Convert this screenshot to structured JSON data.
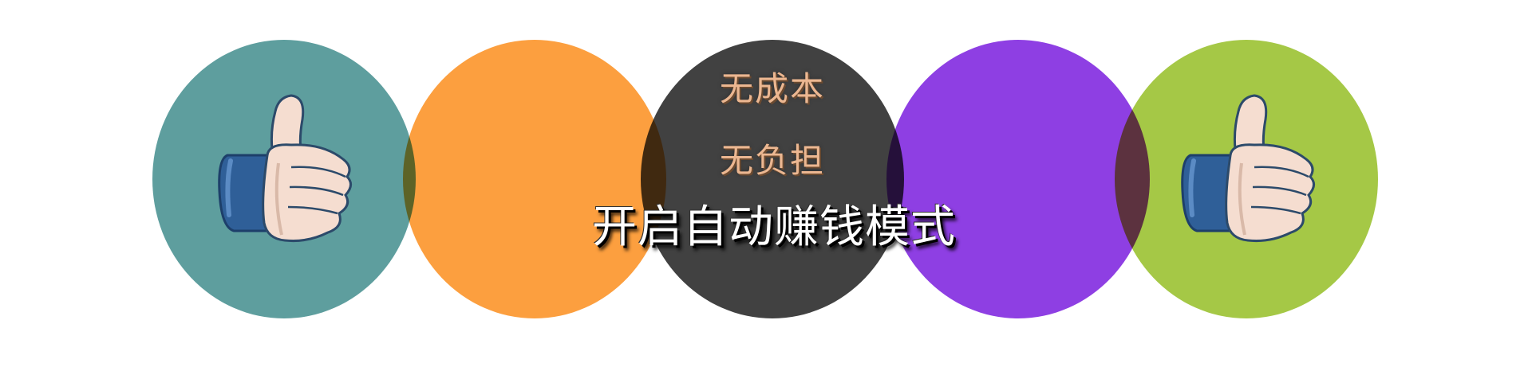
{
  "colors": {
    "background": "#ffffff",
    "circle_1": "#5e9e9e",
    "circle_2": "#fc9f3f",
    "circle_3": "#414141",
    "circle_4": "#8e3fe3",
    "circle_5": "#a5c846",
    "small_text": "#ecb791",
    "big_text": "#ffffff"
  },
  "icons": {
    "left": "thumbs-up-icon",
    "right": "thumbs-up-icon"
  },
  "text": {
    "line1": "无成本",
    "line2": "无负担",
    "headline": "开启自动赚钱模式"
  }
}
